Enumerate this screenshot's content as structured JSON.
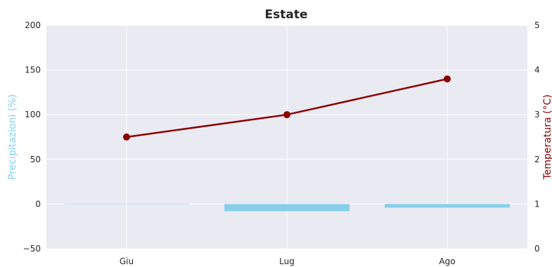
{
  "chart_data": {
    "type": "bar+line",
    "title": "Estate",
    "categories": [
      "Giu",
      "Lug",
      "Ago"
    ],
    "series": [
      {
        "name": "Precipitazioni (%)",
        "type": "bar",
        "axis": "left",
        "values": [
          0,
          -8,
          -4
        ],
        "color": "#87ceeb"
      },
      {
        "name": "Temperatura (°C)",
        "type": "line",
        "axis": "right",
        "values": [
          2.5,
          3.0,
          3.8
        ],
        "color": "#8b0000"
      }
    ],
    "y_left": {
      "label": "Precipitazioni (%)",
      "range": [
        -50,
        200
      ],
      "ticks": [
        "−50",
        "0",
        "50",
        "100",
        "150",
        "200"
      ],
      "tick_values": [
        -50,
        0,
        50,
        100,
        150,
        200
      ],
      "color": "#87ceeb"
    },
    "y_right": {
      "label": "Temperatura (°C)",
      "range": [
        0,
        5
      ],
      "ticks": [
        "0",
        "1",
        "2",
        "3",
        "4",
        "5"
      ],
      "tick_values": [
        0,
        1,
        2,
        3,
        4,
        5
      ],
      "color": "#8b0000"
    },
    "grid": true,
    "background": "#eaeaf2"
  }
}
